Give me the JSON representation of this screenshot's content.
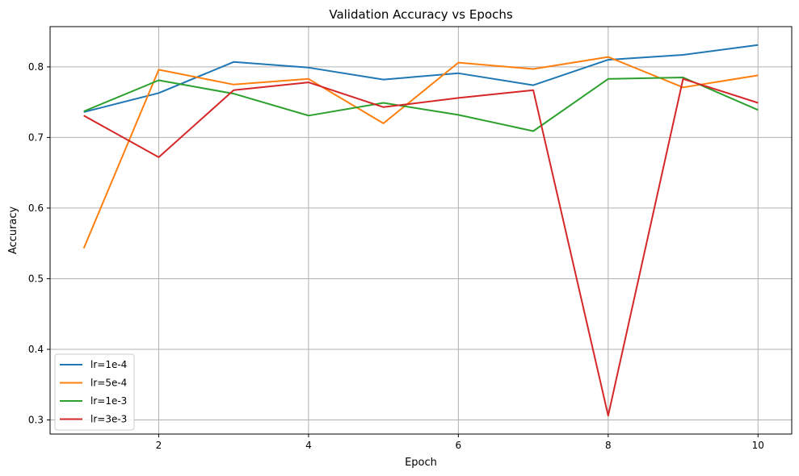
{
  "chart_data": {
    "type": "line",
    "title": "Validation Accuracy vs Epochs",
    "xlabel": "Epoch",
    "ylabel": "Accuracy",
    "x": [
      1,
      2,
      3,
      4,
      5,
      6,
      7,
      8,
      9,
      10
    ],
    "xlim": [
      0.55,
      10.45
    ],
    "ylim": [
      0.28,
      0.857
    ],
    "xticks": [
      2,
      4,
      6,
      8,
      10
    ],
    "yticks": [
      0.3,
      0.4,
      0.5,
      0.6,
      0.7,
      0.8
    ],
    "xtick_labels": [
      "2",
      "4",
      "6",
      "8",
      "10"
    ],
    "ytick_labels": [
      "0.3",
      "0.4",
      "0.5",
      "0.6",
      "0.7",
      "0.8"
    ],
    "grid": true,
    "legend_position": "lower-left",
    "series": [
      {
        "name": "lr=1e-4",
        "color": "#1f77b4",
        "values": [
          0.736,
          0.763,
          0.807,
          0.799,
          0.782,
          0.791,
          0.774,
          0.81,
          0.817,
          0.831
        ]
      },
      {
        "name": "lr=5e-4",
        "color": "#ff7f0e",
        "values": [
          0.543,
          0.796,
          0.775,
          0.783,
          0.72,
          0.806,
          0.797,
          0.814,
          0.771,
          0.788
        ]
      },
      {
        "name": "lr=1e-3",
        "color": "#2ca02c",
        "values": [
          0.737,
          0.781,
          0.762,
          0.731,
          0.749,
          0.732,
          0.709,
          0.783,
          0.785,
          0.739
        ]
      },
      {
        "name": "lr=3e-3",
        "color": "#d62728",
        "values": [
          0.731,
          0.672,
          0.767,
          0.778,
          0.743,
          0.756,
          0.767,
          0.306,
          0.783,
          0.749
        ]
      }
    ]
  }
}
